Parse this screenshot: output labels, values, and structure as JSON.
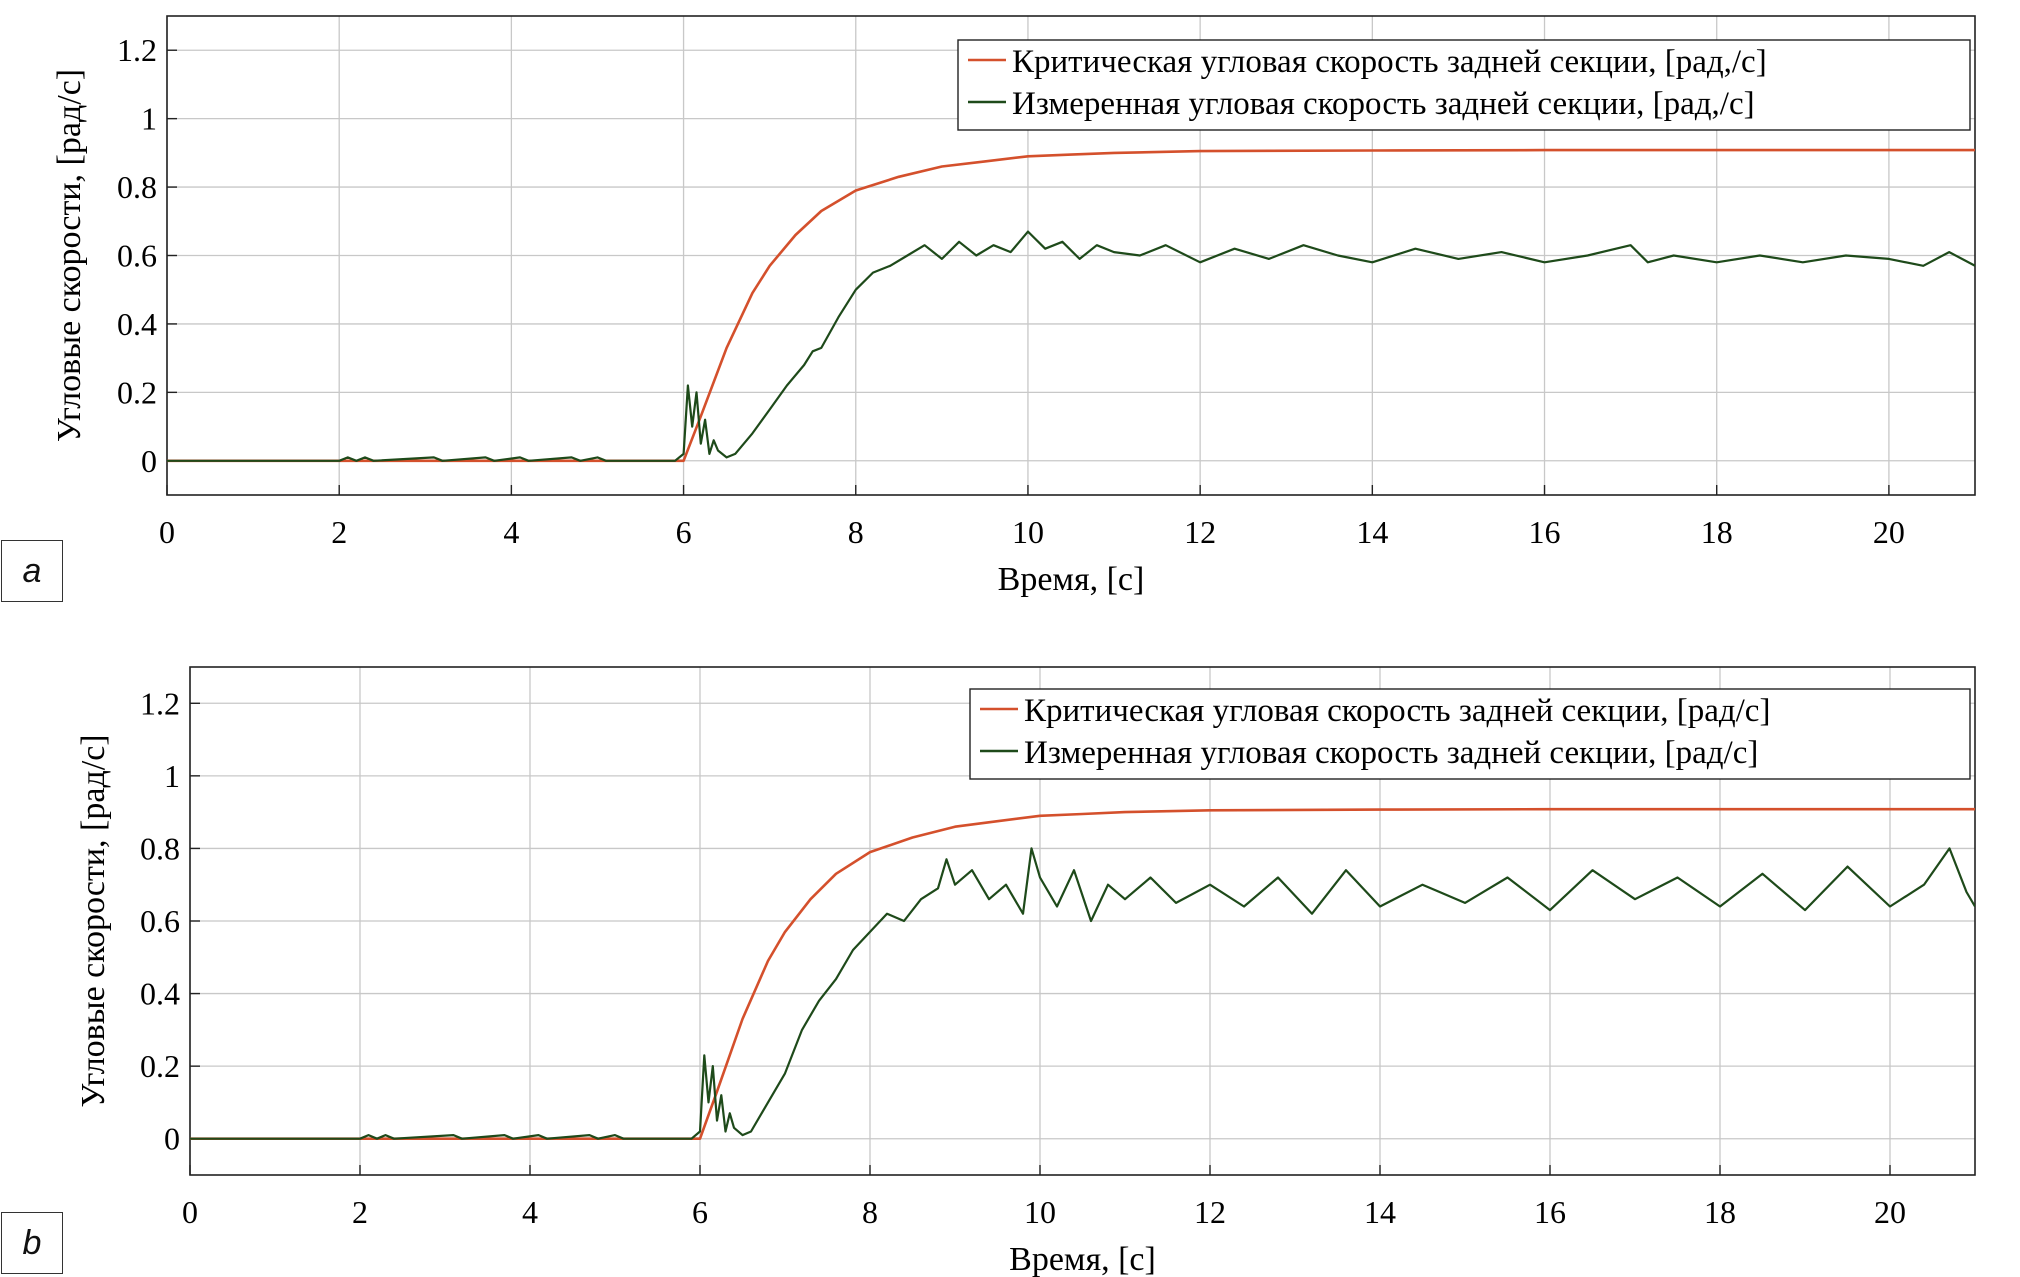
{
  "panels": [
    {
      "label": "a"
    },
    {
      "label": "b"
    }
  ],
  "colors": {
    "critical": "#d4502c",
    "measured": "#1e4a1a"
  },
  "chart_data": [
    {
      "type": "line",
      "panel": "a",
      "xlabel": "Время, [с]",
      "ylabel": "Угловые скорости, [рад/с]",
      "xlim": [
        0,
        21
      ],
      "ylim": [
        -0.1,
        1.3
      ],
      "xticks": [
        0,
        2,
        4,
        6,
        8,
        10,
        12,
        14,
        16,
        18,
        20
      ],
      "yticks": [
        0,
        0.2,
        0.4,
        0.6,
        0.8,
        1,
        1.2
      ],
      "ytick_labels": [
        "0",
        "0.2",
        "0.4",
        "0.6",
        "0.8",
        "1",
        "1.2"
      ],
      "grid": true,
      "legend_position": "top-right",
      "series": [
        {
          "name": "Критическая угловая скорость задней секции, [рад,/с]",
          "color": "#d4502c",
          "x": [
            0,
            5.9,
            6.0,
            6.2,
            6.5,
            6.8,
            7.0,
            7.3,
            7.6,
            8.0,
            8.5,
            9.0,
            9.5,
            10.0,
            10.5,
            11,
            12,
            14,
            16,
            18,
            20,
            21
          ],
          "y": [
            0,
            0,
            0,
            0.13,
            0.33,
            0.49,
            0.57,
            0.66,
            0.73,
            0.79,
            0.83,
            0.86,
            0.875,
            0.89,
            0.895,
            0.9,
            0.905,
            0.907,
            0.908,
            0.908,
            0.908,
            0.908
          ]
        },
        {
          "name": "Измеренная угловая скорость задней секции, [рад,/с]",
          "color": "#1e4a1a",
          "x": [
            0,
            2.0,
            2.1,
            2.2,
            2.3,
            2.4,
            3.1,
            3.2,
            3.7,
            3.8,
            4.1,
            4.2,
            4.7,
            4.8,
            5.0,
            5.1,
            5.9,
            6.0,
            6.05,
            6.1,
            6.15,
            6.2,
            6.25,
            6.3,
            6.35,
            6.4,
            6.5,
            6.6,
            6.8,
            7.0,
            7.2,
            7.4,
            7.5,
            7.6,
            7.8,
            8.0,
            8.2,
            8.4,
            8.6,
            8.8,
            9.0,
            9.2,
            9.4,
            9.6,
            9.8,
            10.0,
            10.2,
            10.4,
            10.6,
            10.8,
            11.0,
            11.3,
            11.6,
            12.0,
            12.4,
            12.8,
            13.2,
            13.6,
            14.0,
            14.5,
            15.0,
            15.5,
            16.0,
            16.5,
            17.0,
            17.2,
            17.5,
            18.0,
            18.5,
            19.0,
            19.5,
            20.0,
            20.4,
            20.7,
            21.0
          ],
          "y": [
            0,
            0,
            0.01,
            0,
            0.01,
            0,
            0.01,
            0,
            0.01,
            0,
            0.01,
            0,
            0.01,
            0,
            0.01,
            0,
            0,
            0.02,
            0.22,
            0.1,
            0.2,
            0.05,
            0.12,
            0.02,
            0.06,
            0.03,
            0.01,
            0.02,
            0.08,
            0.15,
            0.22,
            0.28,
            0.32,
            0.33,
            0.42,
            0.5,
            0.55,
            0.57,
            0.6,
            0.63,
            0.59,
            0.64,
            0.6,
            0.63,
            0.61,
            0.67,
            0.62,
            0.64,
            0.59,
            0.63,
            0.61,
            0.6,
            0.63,
            0.58,
            0.62,
            0.59,
            0.63,
            0.6,
            0.58,
            0.62,
            0.59,
            0.61,
            0.58,
            0.6,
            0.63,
            0.58,
            0.6,
            0.58,
            0.6,
            0.58,
            0.6,
            0.59,
            0.57,
            0.61,
            0.57
          ]
        }
      ]
    },
    {
      "type": "line",
      "panel": "b",
      "xlabel": "Время, [с]",
      "ylabel": "Угловые скорости, [рад/с]",
      "xlim": [
        0,
        21
      ],
      "ylim": [
        -0.1,
        1.3
      ],
      "xticks": [
        0,
        2,
        4,
        6,
        8,
        10,
        12,
        14,
        16,
        18,
        20
      ],
      "yticks": [
        0,
        0.2,
        0.4,
        0.6,
        0.8,
        1,
        1.2
      ],
      "ytick_labels": [
        "0",
        "0.2",
        "0.4",
        "0.6",
        "0.8",
        "1",
        "1.2"
      ],
      "grid": true,
      "legend_position": "top-right",
      "series": [
        {
          "name": "Критическая угловая скорость задней секции, [рад/с]",
          "color": "#d4502c",
          "x": [
            0,
            5.9,
            6.0,
            6.2,
            6.5,
            6.8,
            7.0,
            7.3,
            7.6,
            8.0,
            8.5,
            9.0,
            9.5,
            10.0,
            10.5,
            11,
            12,
            14,
            16,
            18,
            20,
            21
          ],
          "y": [
            0,
            0,
            0,
            0.13,
            0.33,
            0.49,
            0.57,
            0.66,
            0.73,
            0.79,
            0.83,
            0.86,
            0.875,
            0.89,
            0.895,
            0.9,
            0.905,
            0.907,
            0.908,
            0.908,
            0.908,
            0.908
          ]
        },
        {
          "name": "Измеренная угловая скорость задней секции, [рад/с]",
          "color": "#1e4a1a",
          "x": [
            0,
            2.0,
            2.1,
            2.2,
            2.3,
            2.4,
            3.1,
            3.2,
            3.7,
            3.8,
            4.1,
            4.2,
            4.7,
            4.8,
            5.0,
            5.1,
            5.9,
            6.0,
            6.05,
            6.1,
            6.15,
            6.2,
            6.25,
            6.3,
            6.35,
            6.4,
            6.5,
            6.6,
            6.8,
            7.0,
            7.2,
            7.4,
            7.6,
            7.8,
            8.0,
            8.2,
            8.4,
            8.6,
            8.8,
            8.9,
            9.0,
            9.2,
            9.4,
            9.6,
            9.8,
            9.9,
            10.0,
            10.2,
            10.4,
            10.6,
            10.8,
            11.0,
            11.3,
            11.6,
            12.0,
            12.4,
            12.8,
            13.2,
            13.6,
            14.0,
            14.5,
            15.0,
            15.5,
            16.0,
            16.5,
            17.0,
            17.5,
            18.0,
            18.5,
            19.0,
            19.5,
            20.0,
            20.4,
            20.7,
            20.9,
            21.0
          ],
          "y": [
            0,
            0,
            0.01,
            0,
            0.01,
            0,
            0.01,
            0,
            0.01,
            0,
            0.01,
            0,
            0.01,
            0,
            0.01,
            0,
            0,
            0.02,
            0.23,
            0.1,
            0.2,
            0.05,
            0.12,
            0.02,
            0.07,
            0.03,
            0.01,
            0.02,
            0.1,
            0.18,
            0.3,
            0.38,
            0.44,
            0.52,
            0.57,
            0.62,
            0.6,
            0.66,
            0.69,
            0.77,
            0.7,
            0.74,
            0.66,
            0.7,
            0.62,
            0.8,
            0.72,
            0.64,
            0.74,
            0.6,
            0.7,
            0.66,
            0.72,
            0.65,
            0.7,
            0.64,
            0.72,
            0.62,
            0.74,
            0.64,
            0.7,
            0.65,
            0.72,
            0.63,
            0.74,
            0.66,
            0.72,
            0.64,
            0.73,
            0.63,
            0.75,
            0.64,
            0.7,
            0.8,
            0.68,
            0.64
          ]
        }
      ]
    }
  ]
}
